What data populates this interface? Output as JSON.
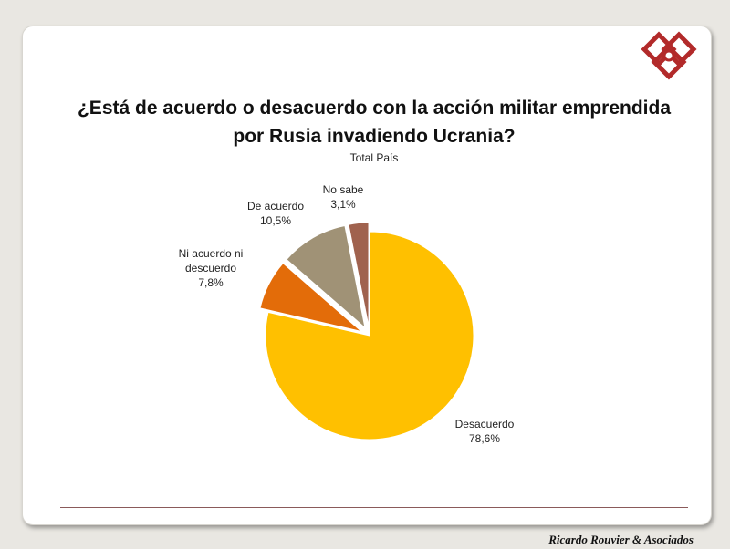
{
  "header": {
    "title_line1": "¿Está de acuerdo o desacuerdo con la acción militar emprendida",
    "title_line2": "por Rusia invadiendo Ucrania?",
    "subtitle": "Total País",
    "logo_icon": "interlocked-diamonds-logo"
  },
  "footer": {
    "brand": "Ricardo Rouvier & Asociados"
  },
  "chart_data": {
    "type": "pie",
    "title": "¿Está de acuerdo o desacuerdo con la acción militar emprendida por Rusia invadiendo Ucrania?",
    "subtitle": "Total País",
    "slices": [
      {
        "label": "Desacuerdo",
        "value": 78.6,
        "value_label": "78,6%",
        "color": "#ffc000",
        "exploded": false
      },
      {
        "label": "Ni acuerdo ni descuerdo",
        "label_line1": "Ni acuerdo ni",
        "label_line2": "descuerdo",
        "value": 7.8,
        "value_label": "7,8%",
        "color": "#e36c09",
        "exploded": true
      },
      {
        "label": "De acuerdo",
        "value": 10.5,
        "value_label": "10,5%",
        "color": "#a09276",
        "exploded": true
      },
      {
        "label": "No sabe",
        "value": 3.1,
        "value_label": "3,1%",
        "color": "#a0624e",
        "exploded": true
      }
    ],
    "legend": "none"
  }
}
